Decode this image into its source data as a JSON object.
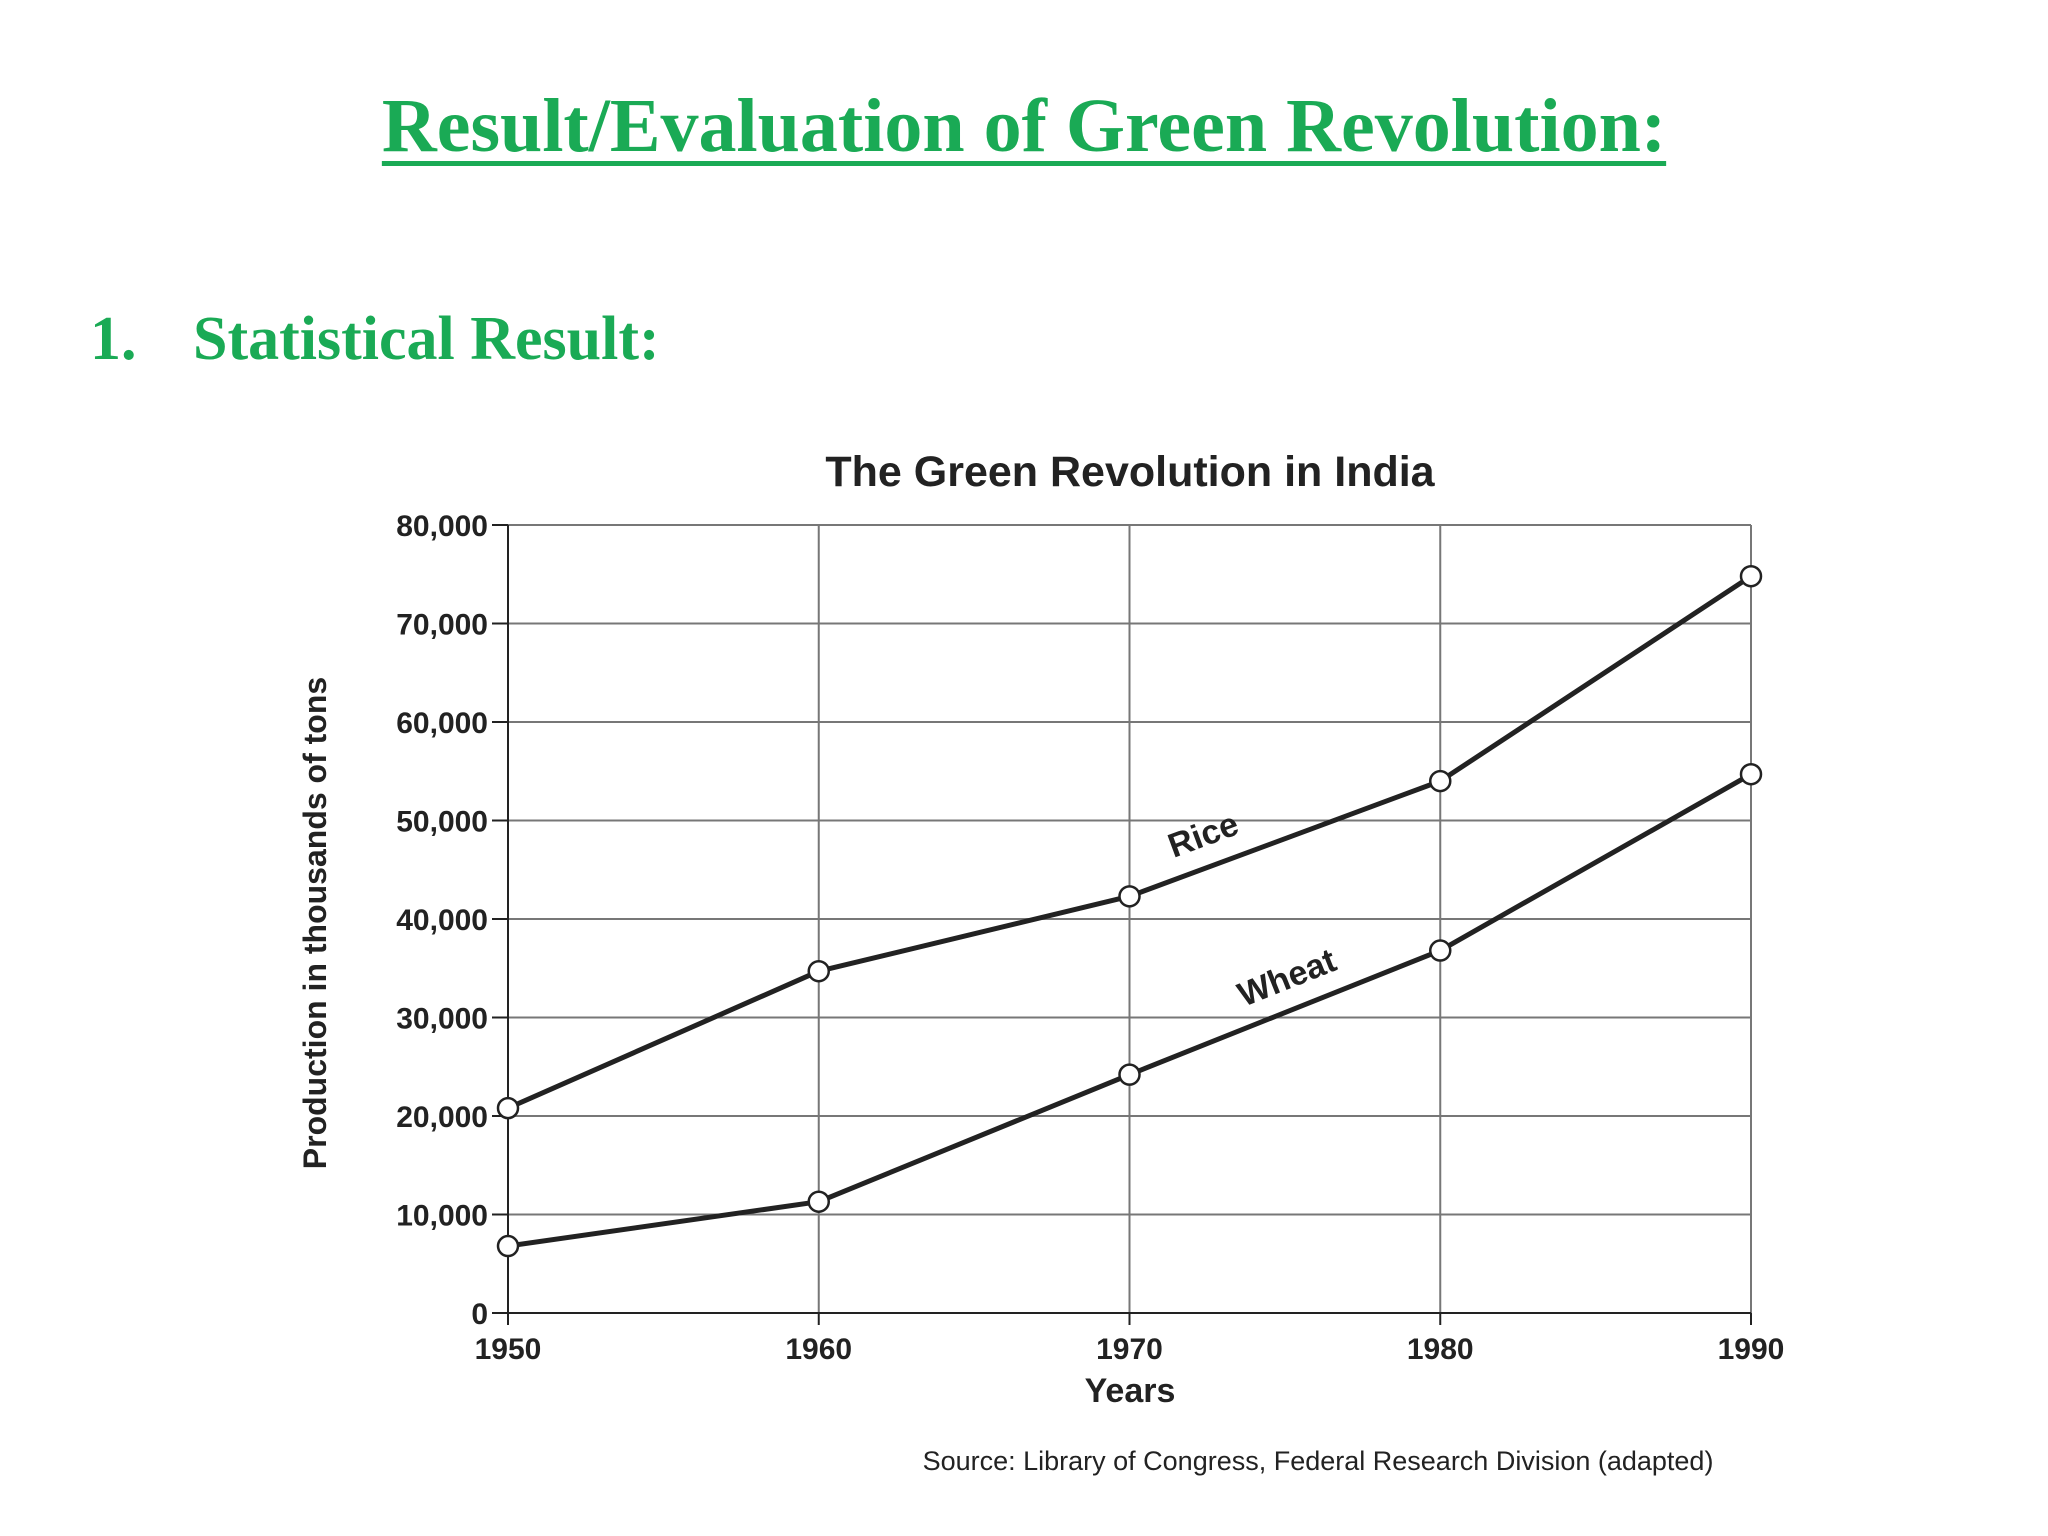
{
  "slide": {
    "title": "Result/Evaluation of Green Revolution:",
    "section_number": "1.",
    "section_heading": "Statistical Result:"
  },
  "colors": {
    "heading_green": "#1aaa55",
    "chart_ink": "#222222",
    "grid": "#777777",
    "marker_fill": "#ffffff"
  },
  "chart_data": {
    "type": "line",
    "title": "The Green Revolution in India",
    "xlabel": "Years",
    "ylabel": "Production in thousands of tons",
    "source": "Source: Library of Congress, Federal Research Division (adapted)",
    "x": [
      1950,
      1960,
      1970,
      1980,
      1990
    ],
    "x_tick_labels": [
      "1950",
      "1960",
      "1970",
      "1980",
      "1990"
    ],
    "ylim": [
      0,
      80000
    ],
    "y_ticks": [
      0,
      10000,
      20000,
      30000,
      40000,
      50000,
      60000,
      70000,
      80000
    ],
    "y_tick_labels": [
      "0",
      "10,000",
      "20,000",
      "30,000",
      "40,000",
      "50,000",
      "60,000",
      "70,000",
      "80,000"
    ],
    "grid": true,
    "legend": "none (series labeled inline on the lines)",
    "series": [
      {
        "name": "Rice",
        "values": [
          20800,
          34700,
          42300,
          54000,
          74800
        ]
      },
      {
        "name": "Wheat",
        "values": [
          6800,
          11300,
          24200,
          36800,
          54700
        ]
      }
    ]
  }
}
